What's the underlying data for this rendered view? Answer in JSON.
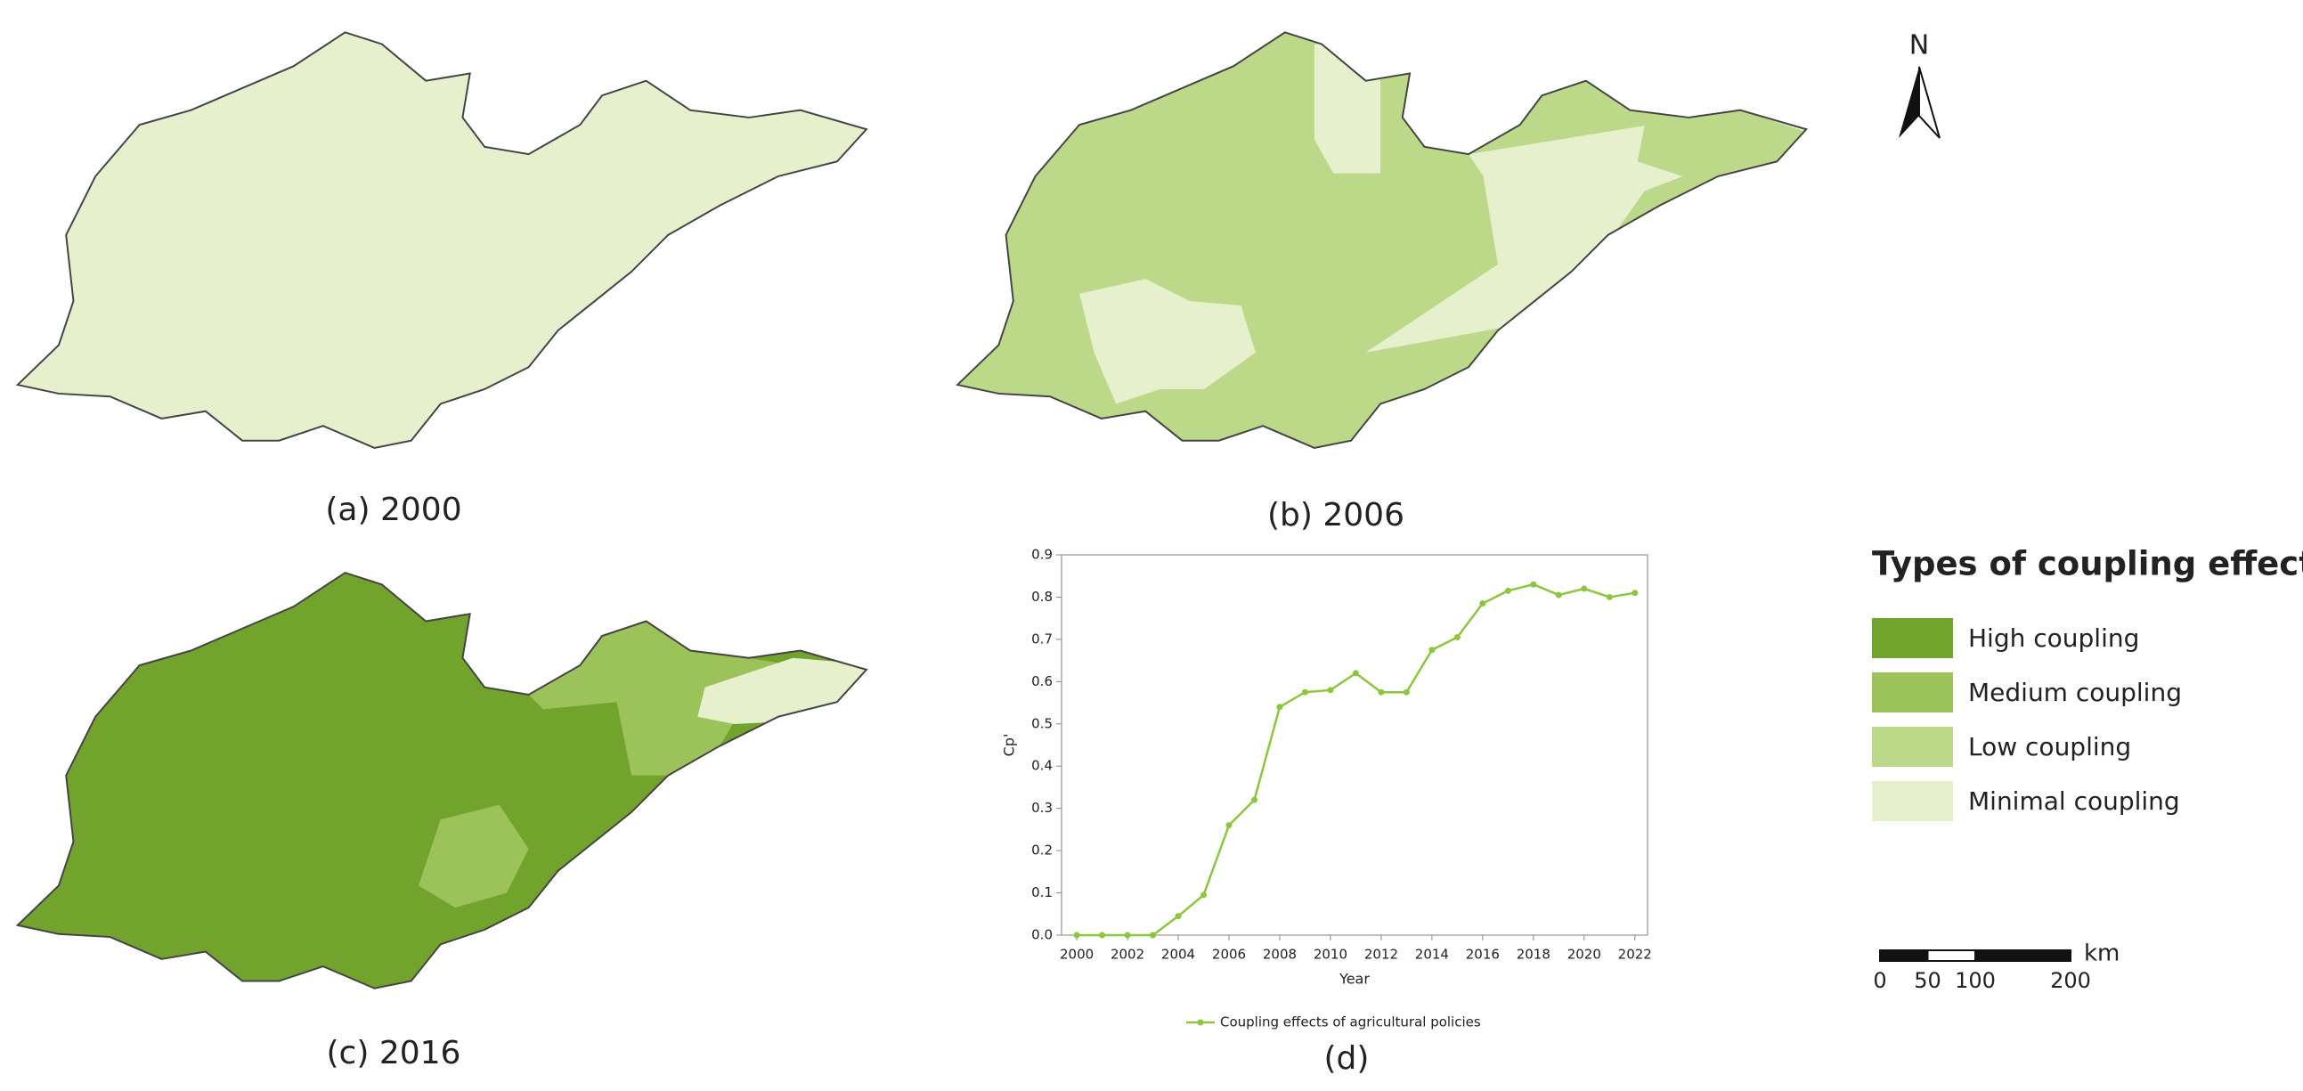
{
  "panels": [
    {
      "label": "(a) 2000"
    },
    {
      "label": "(b) 2006"
    },
    {
      "label": "(c) 2016"
    }
  ],
  "north": "N",
  "legend": {
    "title": "Types of coupling effects",
    "items": [
      {
        "label": "High coupling",
        "color": "#72a32d"
      },
      {
        "label": "Medium coupling",
        "color": "#9cc25a"
      },
      {
        "label": "Low coupling",
        "color": "#bcd98a"
      },
      {
        "label": "Minimal coupling",
        "color": "#e6f0cc"
      }
    ]
  },
  "scale_bar": {
    "unit": "km",
    "ticks": [
      0,
      50,
      100,
      200
    ]
  },
  "chart_data": {
    "type": "line",
    "panel_label": "(d)",
    "x_label": "Year",
    "y_label": "Cp'",
    "x": [
      2000,
      2001,
      2002,
      2003,
      2004,
      2005,
      2006,
      2007,
      2008,
      2009,
      2010,
      2011,
      2012,
      2013,
      2014,
      2015,
      2016,
      2017,
      2018,
      2019,
      2020,
      2021,
      2022
    ],
    "xlim": [
      1999.4,
      2022.5
    ],
    "xticks": [
      2000,
      2002,
      2004,
      2006,
      2008,
      2010,
      2012,
      2014,
      2016,
      2018,
      2020,
      2022
    ],
    "ylim": [
      0,
      0.9
    ],
    "yticks": [
      {
        "value": 0,
        "label": "0.0"
      },
      0.1,
      0.2,
      0.3,
      0.4,
      0.5,
      0.6,
      0.7,
      0.8,
      0.9
    ],
    "series": [
      {
        "name": "Coupling effects of agricultural policies",
        "color": "#8cc63f",
        "values": [
          0,
          0,
          0,
          0,
          0.045,
          0.095,
          0.26,
          0.32,
          0.54,
          0.575,
          0.58,
          0.62,
          0.575,
          0.575,
          0.675,
          0.705,
          0.785,
          0.815,
          0.83,
          0.805,
          0.82,
          0.8,
          0.81
        ]
      }
    ]
  }
}
